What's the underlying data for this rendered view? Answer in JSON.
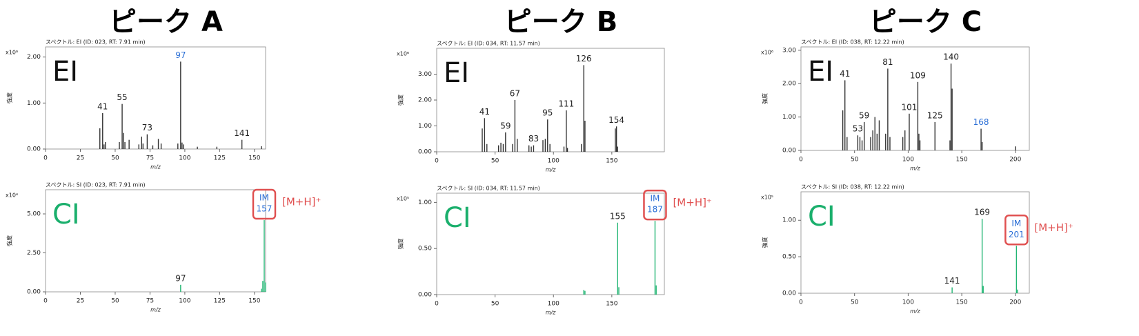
{
  "chart_data": [
    {
      "type": "bar",
      "title": "ピーク A",
      "subtitle": "スペクトル: EI (ID: 023, RT: 7.91 min)",
      "mode_label": "EI",
      "mode_color": "#111111",
      "scale_label": "x10⁶",
      "ylabel": "強度",
      "xlabel": "m/z",
      "color": "#333333",
      "x": [
        39,
        41,
        42,
        43,
        53,
        55,
        56,
        57,
        60,
        67,
        69,
        70,
        73,
        77,
        81,
        83,
        95,
        97,
        98,
        99,
        109,
        123,
        141,
        155
      ],
      "values": [
        0.45,
        0.78,
        0.1,
        0.15,
        0.15,
        0.98,
        0.35,
        0.15,
        0.2,
        0.1,
        0.27,
        0.12,
        0.32,
        0.08,
        0.22,
        0.12,
        0.12,
        1.9,
        0.14,
        0.1,
        0.05,
        0.05,
        0.2,
        0.06
      ],
      "peak_labels": [
        null,
        {
          "label": "41",
          "color": "#222222"
        },
        null,
        null,
        null,
        {
          "label": "55",
          "color": "#222222"
        },
        null,
        null,
        null,
        null,
        null,
        null,
        {
          "label": "73",
          "color": "#222222"
        },
        null,
        null,
        null,
        null,
        {
          "label": "97",
          "color": "#2b6fd6"
        },
        null,
        null,
        null,
        null,
        {
          "label": "141",
          "color": "#222222"
        },
        null
      ],
      "xlim": [
        0,
        158
      ],
      "xticks": [
        0,
        25,
        50,
        75,
        100,
        125,
        150
      ],
      "ylim": [
        0,
        2.22
      ],
      "yticks": [
        {
          "value": 0,
          "label": "0.00"
        },
        {
          "value": 1,
          "label": "1.00"
        },
        {
          "value": 2,
          "label": "2.00"
        }
      ]
    },
    {
      "type": "bar",
      "subtitle": "スペクトル: SI (ID: 023, RT: 7.91 min)",
      "mode_label": "CI",
      "mode_color": "#1aaf6c",
      "scale_label": "x10⁴",
      "ylabel": "強度",
      "xlabel": "m/z",
      "color": "#22b573",
      "x": [
        97,
        155,
        156,
        157,
        158
      ],
      "values": [
        0.45,
        0.2,
        0.7,
        4.6,
        0.6
      ],
      "peak_labels": [
        {
          "label": "97",
          "color": "#222222"
        },
        null,
        null,
        {
          "label": "157",
          "tag": "IM",
          "note": "[M+H]⁺",
          "color": "#2b6fd6",
          "box": "#e05050"
        },
        null
      ],
      "xlim": [
        0,
        158
      ],
      "xticks": [
        0,
        25,
        50,
        75,
        100,
        125,
        150
      ],
      "ylim": [
        0,
        6.55
      ],
      "yticks": [
        {
          "value": 0,
          "label": "0.00"
        },
        {
          "value": 2.5,
          "label": "2.50"
        },
        {
          "value": 5,
          "label": "5.00"
        }
      ]
    },
    {
      "type": "bar",
      "title": "ピーク B",
      "subtitle": "スペクトル: EI (ID: 034, RT: 11.57 min)",
      "mode_label": "EI",
      "mode_color": "#111111",
      "scale_label": "x10⁶",
      "ylabel": "強度",
      "xlabel": "m/z",
      "color": "#333333",
      "x": [
        39,
        41,
        43,
        53,
        55,
        57,
        59,
        65,
        67,
        69,
        79,
        81,
        83,
        91,
        93,
        95,
        97,
        109,
        111,
        112,
        124,
        126,
        127,
        153,
        154,
        155
      ],
      "values": [
        0.9,
        1.3,
        0.3,
        0.25,
        0.35,
        0.3,
        0.75,
        0.3,
        2.0,
        0.5,
        0.25,
        0.2,
        0.25,
        0.45,
        0.5,
        1.25,
        0.3,
        0.2,
        1.6,
        0.15,
        0.3,
        3.35,
        1.2,
        0.9,
        0.98,
        0.2
      ],
      "peak_labels": [
        null,
        {
          "label": "41",
          "color": "#222222"
        },
        null,
        null,
        null,
        null,
        {
          "label": "59",
          "color": "#222222"
        },
        null,
        {
          "label": "67",
          "color": "#222222"
        },
        null,
        null,
        null,
        {
          "label": "83",
          "color": "#222222"
        },
        null,
        null,
        {
          "label": "95",
          "color": "#222222"
        },
        null,
        null,
        {
          "label": "111",
          "color": "#222222"
        },
        null,
        null,
        {
          "label": "126",
          "color": "#222222"
        },
        null,
        null,
        {
          "label": "154",
          "color": "#222222"
        },
        null
      ],
      "xlim": [
        0,
        195
      ],
      "xticks": [
        0,
        50,
        100,
        150
      ],
      "ylim": [
        0,
        4.0
      ],
      "yticks": [
        {
          "value": 0,
          "label": "0.00"
        },
        {
          "value": 1,
          "label": "1.00"
        },
        {
          "value": 2,
          "label": "2.00"
        },
        {
          "value": 3,
          "label": "3.00"
        }
      ]
    },
    {
      "type": "bar",
      "subtitle": "スペクトル: SI (ID: 034, RT: 11.57 min)",
      "mode_label": "CI",
      "mode_color": "#1aaf6c",
      "scale_label": "x10⁵",
      "ylabel": "強度",
      "xlabel": "m/z",
      "color": "#22b573",
      "x": [
        126,
        127,
        155,
        156,
        187,
        188
      ],
      "values": [
        0.05,
        0.04,
        0.78,
        0.08,
        0.8,
        0.1
      ],
      "peak_labels": [
        null,
        null,
        {
          "label": "155",
          "color": "#222222"
        },
        null,
        {
          "label": "187",
          "tag": "IM",
          "note": "[M+H]⁺",
          "color": "#2b6fd6",
          "box": "#e05050"
        },
        null
      ],
      "xlim": [
        0,
        195
      ],
      "xticks": [
        0,
        50,
        100,
        150
      ],
      "ylim": [
        0,
        1.1
      ],
      "yticks": [
        {
          "value": 0,
          "label": "0.00"
        },
        {
          "value": 0.5,
          "label": "0.50"
        },
        {
          "value": 1,
          "label": "1.00"
        }
      ]
    },
    {
      "type": "bar",
      "title": "ピーク C",
      "subtitle": "スペクトル: EI (ID: 038, RT: 12.22 min)",
      "mode_label": "EI",
      "mode_color": "#111111",
      "scale_label": "x10⁶",
      "ylabel": "強度",
      "xlabel": "m/z",
      "color": "#333333",
      "x": [
        39,
        41,
        43,
        53,
        55,
        57,
        59,
        65,
        67,
        69,
        71,
        73,
        79,
        81,
        83,
        95,
        97,
        101,
        109,
        110,
        111,
        125,
        139,
        140,
        141,
        168,
        169,
        200
      ],
      "values": [
        1.2,
        2.1,
        0.4,
        0.45,
        0.4,
        0.3,
        0.85,
        0.4,
        0.6,
        1.0,
        0.5,
        0.9,
        0.5,
        2.45,
        0.4,
        0.4,
        0.6,
        1.1,
        2.05,
        0.5,
        0.3,
        0.85,
        0.3,
        2.6,
        1.85,
        0.65,
        0.25,
        0.12
      ],
      "peak_labels": [
        null,
        {
          "label": "41",
          "color": "#222222"
        },
        null,
        {
          "label": "53",
          "color": "#222222"
        },
        null,
        null,
        {
          "label": "59",
          "color": "#222222"
        },
        null,
        null,
        null,
        null,
        null,
        null,
        {
          "label": "81",
          "color": "#222222"
        },
        null,
        null,
        null,
        {
          "label": "101",
          "color": "#222222"
        },
        {
          "label": "109",
          "color": "#222222"
        },
        null,
        null,
        {
          "label": "125",
          "color": "#222222"
        },
        null,
        {
          "label": "140",
          "color": "#222222"
        },
        null,
        {
          "label": "168",
          "color": "#2b6fd6"
        },
        null,
        null
      ],
      "xlim": [
        0,
        213
      ],
      "xticks": [
        0,
        50,
        100,
        150,
        200
      ],
      "ylim": [
        0,
        3.1
      ],
      "yticks": [
        {
          "value": 0,
          "label": "0.00"
        },
        {
          "value": 1,
          "label": "1.00"
        },
        {
          "value": 2,
          "label": "2.00"
        },
        {
          "value": 3,
          "label": "3.00"
        }
      ]
    },
    {
      "type": "bar",
      "subtitle": "スペクトル: SI (ID: 038, RT: 12.22 min)",
      "mode_label": "CI",
      "mode_color": "#1aaf6c",
      "scale_label": "x10⁵",
      "ylabel": "強度",
      "xlabel": "m/z",
      "color": "#22b573",
      "x": [
        141,
        169,
        170,
        201,
        202
      ],
      "values": [
        0.08,
        1.02,
        0.1,
        0.65,
        0.05
      ],
      "peak_labels": [
        {
          "label": "141",
          "color": "#222222"
        },
        {
          "label": "169",
          "color": "#222222"
        },
        null,
        {
          "label": "201",
          "tag": "IM",
          "note": "[M+H]⁺",
          "color": "#2b6fd6",
          "box": "#e05050"
        },
        null
      ],
      "xlim": [
        0,
        213
      ],
      "xticks": [
        0,
        50,
        100,
        150,
        200
      ],
      "ylim": [
        0,
        1.39
      ],
      "yticks": [
        {
          "value": 0,
          "label": "0.00"
        },
        {
          "value": 0.5,
          "label": "0.50"
        },
        {
          "value": 1,
          "label": "1.00"
        }
      ]
    }
  ]
}
